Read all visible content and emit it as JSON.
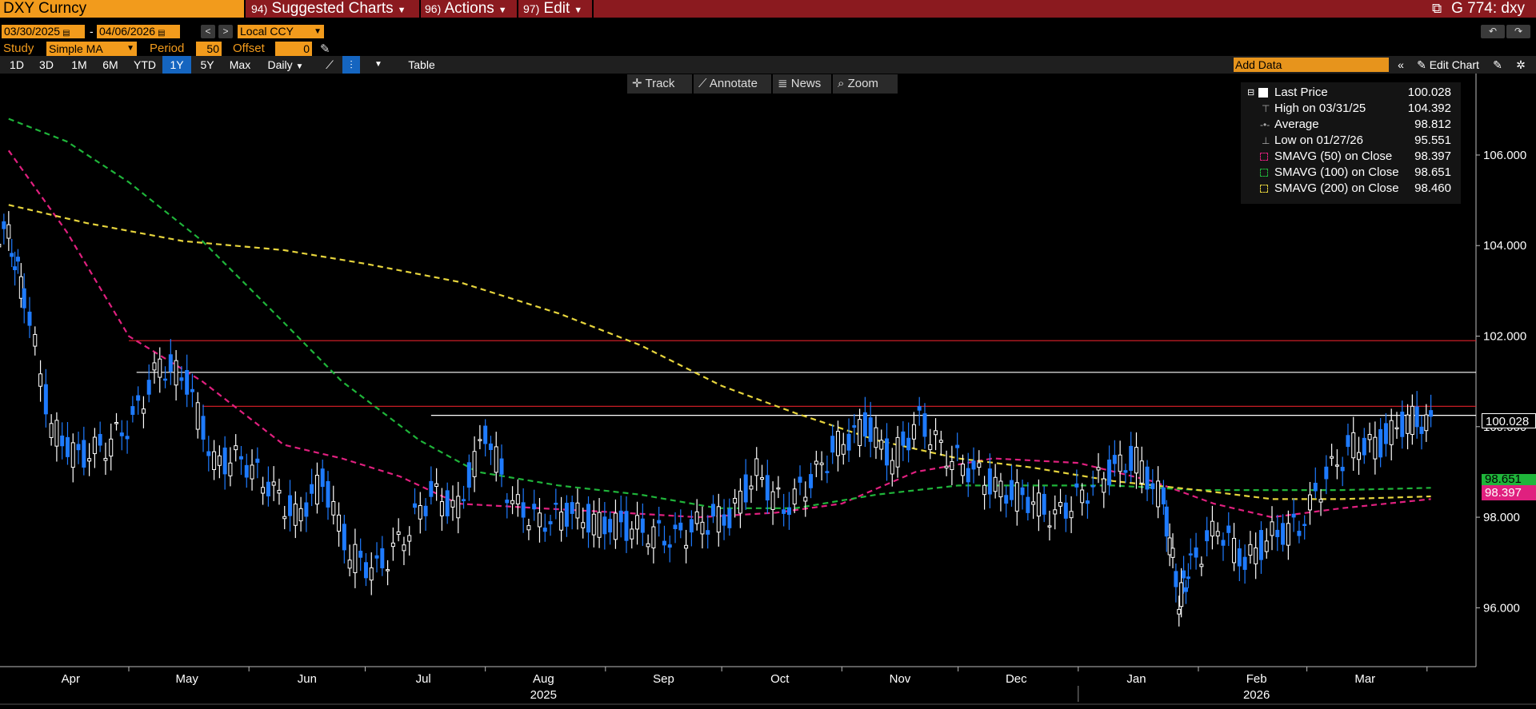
{
  "header": {
    "ticker": "DXY Curncy",
    "menus": [
      {
        "num": "94)",
        "label": "Suggested Charts"
      },
      {
        "num": "96)",
        "label": "Actions"
      },
      {
        "num": "97)",
        "label": "Edit"
      }
    ],
    "right_title": "G 774: dxy"
  },
  "controls": {
    "start_date": "03/30/2025",
    "end_date": "04/06/2026",
    "date_dash": "-",
    "currency": "Local CCY",
    "study_label": "Study",
    "study_value": "Simple MA",
    "period_label": "Period",
    "period_value": "50",
    "offset_label": "Offset",
    "offset_value": "0"
  },
  "range_buttons": [
    "1D",
    "3D",
    "1M",
    "6M",
    "YTD",
    "1Y",
    "5Y",
    "Max"
  ],
  "active_range": "1Y",
  "frequency": "Daily",
  "table_label": "Table",
  "add_data_placeholder": "Add Data",
  "edit_chart_label": "Edit Chart",
  "tools": [
    "Track",
    "Annotate",
    "News",
    "Zoom"
  ],
  "legend": [
    {
      "name": "Last Price",
      "value": "100.028"
    },
    {
      "name": "High on 03/31/25",
      "value": "104.392"
    },
    {
      "name": "Average",
      "value": "98.812"
    },
    {
      "name": "Low on 01/27/26",
      "value": "95.551"
    },
    {
      "name": "SMAVG (50)  on Close",
      "value": "98.397"
    },
    {
      "name": "SMAVG (100)  on Close",
      "value": "98.651"
    },
    {
      "name": "SMAVG (200)  on Close",
      "value": "98.460"
    }
  ],
  "price_tags": {
    "last": "100.028",
    "sma100": "98.651",
    "sma50": "98.397"
  },
  "colors": {
    "accent": "#f29b1c",
    "header_bg": "#8b1a1f",
    "up_candle": "#ffffff",
    "down_candle": "#1e7bff",
    "sma50": "#e0207f",
    "sma100": "#1fb53a",
    "sma200": "#e6d43c",
    "resistance": "#e0202a",
    "level": "#ffffff"
  },
  "chart_data": {
    "type": "line",
    "ylim": [
      94.7,
      107.8
    ],
    "y_ticks": [
      96,
      98,
      100,
      102,
      104,
      106
    ],
    "y_tick_labels": [
      "96.000",
      "98.000",
      "100.000",
      "102.000",
      "104.000",
      "106.000"
    ],
    "x_month_labels": [
      "Apr",
      "May",
      "Jun",
      "Jul",
      "Aug",
      "Sep",
      "Oct",
      "Nov",
      "Dec",
      "Jan",
      "Feb",
      "Mar"
    ],
    "x_year_labels": [
      "2025",
      "2026"
    ],
    "x_range": [
      "2025-03-30",
      "2026-04-06"
    ],
    "series": [
      {
        "name": "Last Price",
        "x": [
          "2025-03-31",
          "2025-04-04",
          "2025-04-11",
          "2025-04-18",
          "2025-04-25",
          "2025-05-02",
          "2025-05-09",
          "2025-05-16",
          "2025-05-23",
          "2025-05-30",
          "2025-06-06",
          "2025-06-13",
          "2025-06-20",
          "2025-06-27",
          "2025-07-04",
          "2025-07-11",
          "2025-07-18",
          "2025-07-25",
          "2025-08-01",
          "2025-08-08",
          "2025-08-15",
          "2025-08-22",
          "2025-08-29",
          "2025-09-05",
          "2025-09-12",
          "2025-09-19",
          "2025-09-26",
          "2025-10-03",
          "2025-10-10",
          "2025-10-17",
          "2025-10-24",
          "2025-10-31",
          "2025-11-07",
          "2025-11-14",
          "2025-11-21",
          "2025-11-28",
          "2025-12-05",
          "2025-12-12",
          "2025-12-19",
          "2025-12-26",
          "2026-01-02",
          "2026-01-09",
          "2026-01-16",
          "2026-01-23",
          "2026-01-27",
          "2026-01-30",
          "2026-02-06",
          "2026-02-13",
          "2026-02-20",
          "2026-02-27",
          "2026-03-06",
          "2026-03-13",
          "2026-03-20",
          "2026-03-27",
          "2026-04-02"
        ],
        "values": [
          104.2,
          102.9,
          100.0,
          99.3,
          99.6,
          100.1,
          101.4,
          101.0,
          99.2,
          99.3,
          98.7,
          98.0,
          98.8,
          97.2,
          96.8,
          97.6,
          98.5,
          98.2,
          99.9,
          98.3,
          97.9,
          98.1,
          97.9,
          97.8,
          97.7,
          97.5,
          97.9,
          98.0,
          99.0,
          98.2,
          98.8,
          99.6,
          100.0,
          99.3,
          100.1,
          99.4,
          99.0,
          98.6,
          98.4,
          98.0,
          98.5,
          99.0,
          99.3,
          98.3,
          96.2,
          96.9,
          97.8,
          97.0,
          97.6,
          97.8,
          98.9,
          99.6,
          99.6,
          100.2,
          100.03
        ]
      },
      {
        "name": "SMAVG (50)",
        "x": [
          "2025-03-31",
          "2025-04-15",
          "2025-05-01",
          "2025-05-20",
          "2025-06-10",
          "2025-06-25",
          "2025-07-10",
          "2025-07-25",
          "2025-08-15",
          "2025-09-05",
          "2025-09-25",
          "2025-10-15",
          "2025-11-01",
          "2025-11-20",
          "2025-12-10",
          "2026-01-01",
          "2026-01-20",
          "2026-02-05",
          "2026-02-20",
          "2026-03-10",
          "2026-04-02"
        ],
        "values": [
          106.1,
          104.3,
          102.0,
          101.0,
          99.6,
          99.3,
          98.9,
          98.3,
          98.2,
          98.1,
          98.0,
          98.1,
          98.3,
          99.0,
          99.3,
          99.2,
          98.8,
          98.3,
          98.0,
          98.2,
          98.4
        ]
      },
      {
        "name": "SMAVG (100)",
        "x": [
          "2025-03-31",
          "2025-04-15",
          "2025-05-01",
          "2025-05-20",
          "2025-06-10",
          "2025-06-25",
          "2025-07-15",
          "2025-07-30",
          "2025-08-20",
          "2025-09-10",
          "2025-09-30",
          "2025-10-20",
          "2025-11-10",
          "2025-12-01",
          "2025-12-20",
          "2026-01-10",
          "2026-02-01",
          "2026-02-20",
          "2026-03-10",
          "2026-04-02"
        ],
        "values": [
          106.8,
          106.3,
          105.4,
          104.1,
          102.3,
          101.0,
          99.7,
          99.0,
          98.7,
          98.5,
          98.2,
          98.2,
          98.5,
          98.7,
          98.7,
          98.7,
          98.6,
          98.6,
          98.6,
          98.65
        ]
      },
      {
        "name": "SMAVG (200)",
        "x": [
          "2025-03-31",
          "2025-04-20",
          "2025-05-15",
          "2025-06-10",
          "2025-07-01",
          "2025-07-25",
          "2025-08-20",
          "2025-09-10",
          "2025-10-01",
          "2025-10-20",
          "2025-11-10",
          "2025-12-01",
          "2025-12-20",
          "2026-01-10",
          "2026-02-01",
          "2026-02-20",
          "2026-03-10",
          "2026-04-02"
        ],
        "values": [
          104.9,
          104.5,
          104.1,
          103.9,
          103.6,
          103.2,
          102.5,
          101.8,
          100.9,
          100.3,
          99.7,
          99.3,
          99.1,
          98.8,
          98.6,
          98.4,
          98.4,
          98.46
        ]
      }
    ],
    "horizontal_levels": [
      {
        "value": 101.9,
        "start": "2025-05-01",
        "color": "#e0202a"
      },
      {
        "value": 101.2,
        "start": "2025-05-03",
        "color": "#ffffff"
      },
      {
        "value": 100.45,
        "start": "2025-05-20",
        "color": "#e0202a"
      },
      {
        "value": 100.25,
        "start": "2025-07-18",
        "color": "#ffffff"
      }
    ]
  }
}
